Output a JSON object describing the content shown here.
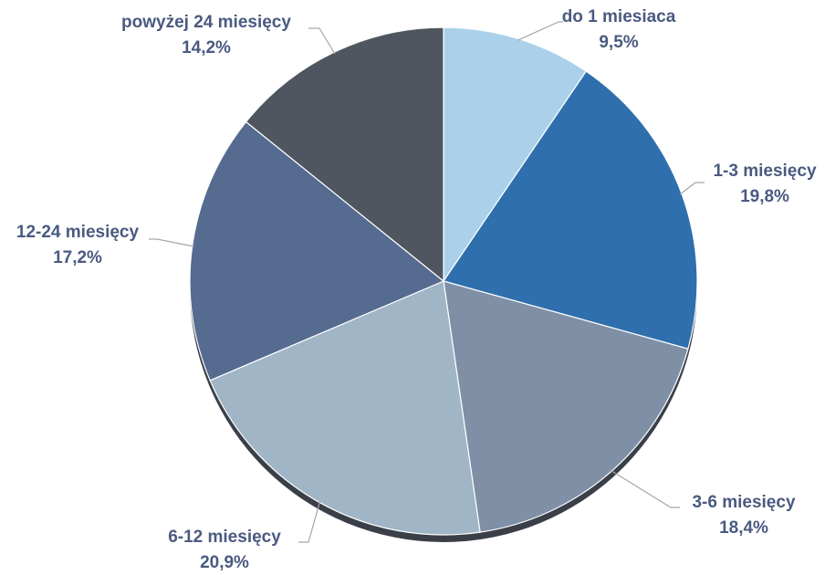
{
  "chart_data": {
    "type": "pie",
    "slices": [
      {
        "label": "do 1 miesiaca",
        "value": 9.5,
        "value_label": "9,5%",
        "color": "#abd1ea"
      },
      {
        "label": "1-3 miesięcy",
        "value": 19.8,
        "value_label": "19,8%",
        "color": "#2f6fad"
      },
      {
        "label": "3-6 miesięcy",
        "value": 18.4,
        "value_label": "18,4%",
        "color": "#7f8fa6"
      },
      {
        "label": "6-12 miesięcy",
        "value": 20.9,
        "value_label": "20,9%",
        "color": "#a0b5c6"
      },
      {
        "label": "12-24 miesięcy",
        "value": 17.2,
        "value_label": "17,2%",
        "color": "#566b90"
      },
      {
        "label": "powyżej 24 miesięcy",
        "value": 14.2,
        "value_label": "14,2%",
        "color": "#4f5660"
      }
    ],
    "label_color": "#4a5a80",
    "leader_color": "#a6a6a6",
    "legend": false
  }
}
